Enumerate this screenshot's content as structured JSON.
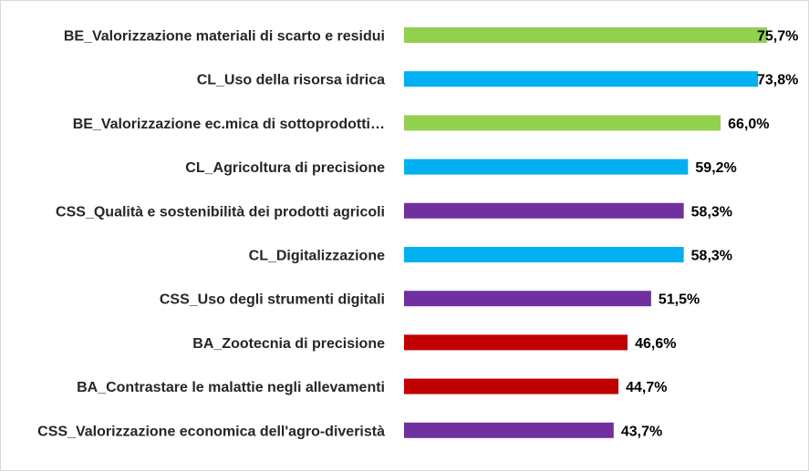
{
  "chart_data": {
    "type": "bar",
    "orientation": "horizontal",
    "categories": [
      "BE_Valorizzazione materiali di scarto e residui",
      "CL_Uso della risorsa idrica",
      "BE_Valorizzazione ec.mica di sottoprodotti…",
      "CL_Agricoltura di precisione",
      "CSS_Qualità e sostenibilità dei prodotti agricoli",
      "CL_Digitalizzazione",
      "CSS_Uso degli strumenti digitali",
      "BA_Zootecnia di precisione",
      "BA_Contrastare le malattie negli allevamenti",
      "CSS_Valorizzazione economica dell'agro-diveristà"
    ],
    "values": [
      75.7,
      73.8,
      66.0,
      59.2,
      58.3,
      58.3,
      51.5,
      46.6,
      44.7,
      43.7
    ],
    "value_labels": [
      "75,7%",
      "73,8%",
      "66,0%",
      "59,2%",
      "58,3%",
      "58,3%",
      "51,5%",
      "46,6%",
      "44,7%",
      "43,7%"
    ],
    "bar_colors": [
      "#92d050",
      "#00b0f0",
      "#92d050",
      "#00b0f0",
      "#7030a0",
      "#00b0f0",
      "#7030a0",
      "#c00000",
      "#c00000",
      "#7030a0"
    ],
    "xlim": [
      0,
      80
    ],
    "grid": false,
    "legend": "none",
    "title": "",
    "xlabel": "",
    "ylabel": ""
  }
}
